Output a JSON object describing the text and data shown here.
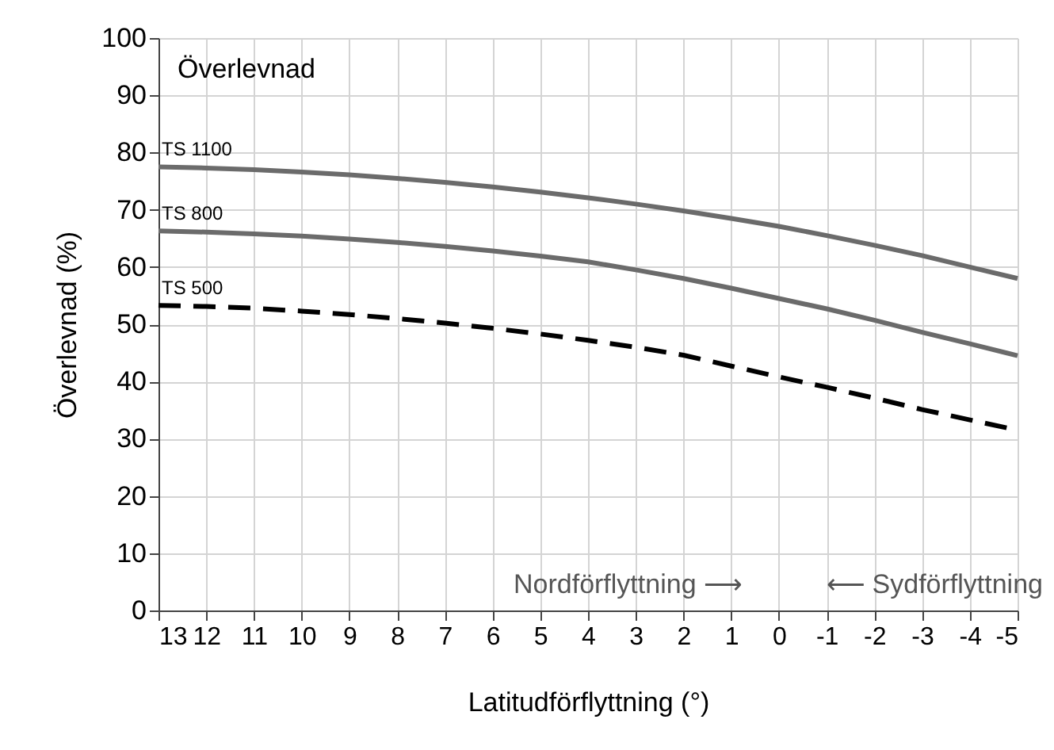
{
  "chart_data": {
    "type": "line",
    "xlabel": "Latitudförflyttning (°)",
    "ylabel": "Överlevnad (%)",
    "annotations": [
      "Överlevnad",
      "Nordförflyttning ⟶",
      "⟵ Sydförflyttning"
    ],
    "x": [
      13,
      12,
      11,
      10,
      9,
      8,
      7,
      6,
      5,
      4,
      3,
      2,
      1,
      0,
      -1,
      -2,
      -3,
      -4,
      -5
    ],
    "xlim": [
      13,
      -5
    ],
    "xticks": [
      13,
      12,
      11,
      10,
      9,
      8,
      7,
      6,
      5,
      4,
      3,
      2,
      1,
      0,
      -1,
      -2,
      -3,
      -4,
      -5
    ],
    "ylim": [
      0,
      100
    ],
    "yticks": [
      0,
      10,
      20,
      30,
      40,
      50,
      60,
      70,
      80,
      90,
      100
    ],
    "grid": true,
    "legend": false,
    "marker": "none",
    "series": [
      {
        "name": "TS 1100",
        "color": "#6b6b6b",
        "line_style": "solid",
        "values": [
          77.5,
          77.3,
          77,
          76.6,
          76.1,
          75.5,
          74.8,
          74,
          73.1,
          72.1,
          71,
          69.8,
          68.5,
          67.1,
          65.5,
          63.8,
          62,
          60,
          58
        ]
      },
      {
        "name": "TS 800",
        "color": "#6b6b6b",
        "line_style": "solid",
        "values": [
          66.3,
          66.1,
          65.8,
          65.4,
          64.9,
          64.3,
          63.6,
          62.8,
          61.9,
          60.9,
          59.5,
          58,
          56.3,
          54.5,
          52.7,
          50.7,
          48.6,
          46.6,
          44.5
        ]
      },
      {
        "name": "TS 500",
        "color": "#000000",
        "line_style": "dashed",
        "values": [
          53.3,
          53.1,
          52.8,
          52.3,
          51.7,
          51,
          50.2,
          49.3,
          48.3,
          47.2,
          46,
          44.6,
          42.7,
          40.8,
          39,
          37.1,
          35.1,
          33.3,
          31.5
        ]
      }
    ]
  }
}
